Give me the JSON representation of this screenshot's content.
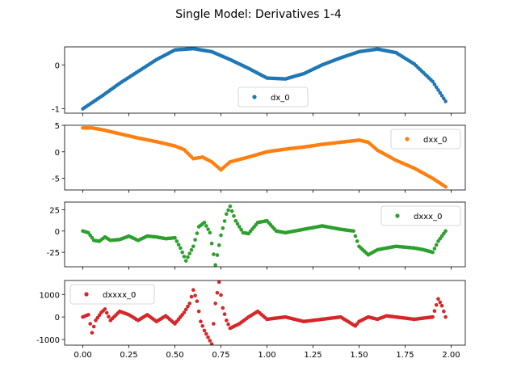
{
  "figure": {
    "title": "Single Model: Derivatives 1-4"
  },
  "chart_data": [
    {
      "type": "scatter",
      "series": [
        {
          "name": "dx_0",
          "color": "#1f77b4"
        }
      ],
      "xlim": [
        -0.099,
        2.077
      ],
      "ylim": [
        -1.1,
        0.41
      ],
      "yticks": [
        -1,
        0
      ],
      "legend": "lower-center",
      "x": [
        0.0,
        0.1,
        0.2,
        0.3,
        0.4,
        0.5,
        0.6,
        0.7,
        0.8,
        0.9,
        1.0,
        1.1,
        1.2,
        1.3,
        1.4,
        1.5,
        1.6,
        1.7,
        1.8,
        1.9,
        1.97
      ],
      "y": [
        -1.0,
        -0.72,
        -0.42,
        -0.15,
        0.12,
        0.34,
        0.37,
        0.3,
        0.12,
        -0.08,
        -0.3,
        -0.32,
        -0.2,
        0.0,
        0.16,
        0.3,
        0.36,
        0.28,
        0.02,
        -0.38,
        -0.83
      ]
    },
    {
      "type": "scatter",
      "series": [
        {
          "name": "dxx_0",
          "color": "#ff7f0e"
        }
      ],
      "xlim": [
        -0.099,
        2.077
      ],
      "ylim": [
        -7.2,
        5.0
      ],
      "yticks": [
        -5,
        0,
        5
      ],
      "legend": "upper-right",
      "x": [
        0.0,
        0.05,
        0.1,
        0.2,
        0.3,
        0.4,
        0.5,
        0.55,
        0.6,
        0.65,
        0.7,
        0.75,
        0.8,
        0.9,
        1.0,
        1.1,
        1.2,
        1.3,
        1.4,
        1.5,
        1.55,
        1.6,
        1.7,
        1.8,
        1.9,
        1.97
      ],
      "y": [
        4.5,
        4.5,
        4.2,
        3.4,
        2.6,
        1.9,
        1.1,
        0.4,
        -1.3,
        -1.0,
        -1.9,
        -3.4,
        -1.9,
        -1.0,
        0.0,
        0.5,
        0.9,
        1.4,
        1.8,
        2.2,
        1.8,
        0.3,
        -1.6,
        -3.1,
        -5.0,
        -6.6
      ]
    },
    {
      "type": "scatter",
      "series": [
        {
          "name": "dxxx_0",
          "color": "#2ca02c"
        }
      ],
      "xlim": [
        -0.099,
        2.077
      ],
      "ylim": [
        -42,
        34
      ],
      "yticks": [
        -25,
        0,
        25
      ],
      "legend": "upper-right",
      "x": [
        0.0,
        0.03,
        0.06,
        0.09,
        0.12,
        0.15,
        0.2,
        0.25,
        0.3,
        0.35,
        0.4,
        0.45,
        0.5,
        0.53,
        0.56,
        0.6,
        0.63,
        0.66,
        0.69,
        0.72,
        0.75,
        0.78,
        0.8,
        0.83,
        0.87,
        0.9,
        0.95,
        1.0,
        1.05,
        1.1,
        1.2,
        1.3,
        1.4,
        1.47,
        1.5,
        1.55,
        1.6,
        1.7,
        1.8,
        1.85,
        1.9,
        1.93,
        1.97
      ],
      "y": [
        0,
        -2,
        -11,
        -12,
        -7,
        -11,
        -10,
        -6,
        -11,
        -6,
        -7,
        -9,
        -8,
        -20,
        -35,
        -18,
        5,
        10,
        -2,
        -40,
        -5,
        20,
        29,
        12,
        -2,
        -3,
        10,
        12,
        0,
        -2,
        2,
        6,
        2,
        0,
        -18,
        -28,
        -22,
        -18,
        -20,
        -22,
        -25,
        -12,
        0
      ]
    },
    {
      "type": "scatter",
      "series": [
        {
          "name": "dxxxx_0",
          "color": "#d62728"
        }
      ],
      "xlim": [
        -0.099,
        2.077
      ],
      "ylim": [
        -1250,
        1620
      ],
      "yticks": [
        -1000,
        0,
        1000
      ],
      "legend": "upper-left",
      "x": [
        0.0,
        0.03,
        0.05,
        0.07,
        0.1,
        0.12,
        0.15,
        0.2,
        0.25,
        0.3,
        0.35,
        0.4,
        0.45,
        0.5,
        0.55,
        0.58,
        0.6,
        0.62,
        0.64,
        0.66,
        0.68,
        0.7,
        0.72,
        0.74,
        0.76,
        0.78,
        0.8,
        0.85,
        0.9,
        0.95,
        1.0,
        1.1,
        1.2,
        1.3,
        1.4,
        1.45,
        1.48,
        1.5,
        1.55,
        1.6,
        1.65,
        1.7,
        1.8,
        1.9,
        1.93,
        1.95,
        1.97
      ],
      "y": [
        0,
        100,
        -700,
        -150,
        200,
        350,
        -150,
        250,
        100,
        -150,
        100,
        -200,
        50,
        -300,
        200,
        600,
        1200,
        700,
        -200,
        -600,
        -900,
        -1200,
        600,
        1550,
        400,
        -150,
        -500,
        -300,
        0,
        250,
        -100,
        0,
        -200,
        -100,
        0,
        -250,
        -400,
        -200,
        0,
        -100,
        50,
        0,
        -100,
        0,
        800,
        500,
        0
      ]
    }
  ]
}
